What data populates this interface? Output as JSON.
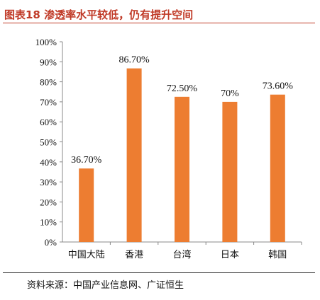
{
  "header": {
    "title": "图表18 渗透率水平较低，仍有提升空间"
  },
  "footer": {
    "source": "资料来源：中国产业信息网、广证恒生"
  },
  "colors": {
    "bar": "#ed7d31",
    "title": "#c03a27"
  },
  "chart_data": {
    "type": "bar",
    "title": "",
    "xlabel": "",
    "ylabel": "",
    "categories": [
      "中国大陆",
      "香港",
      "台湾",
      "日本",
      "韩国"
    ],
    "values": [
      36.7,
      86.7,
      72.5,
      70,
      73.6
    ],
    "data_labels": [
      "36.70%",
      "86.70%",
      "72.50%",
      "70%",
      "73.60%"
    ],
    "ylim": [
      0,
      100
    ],
    "yticks": [
      "0%",
      "10%",
      "20%",
      "30%",
      "40%",
      "50%",
      "60%",
      "70%",
      "80%",
      "90%",
      "100%"
    ],
    "grid": false,
    "legend": "none"
  }
}
